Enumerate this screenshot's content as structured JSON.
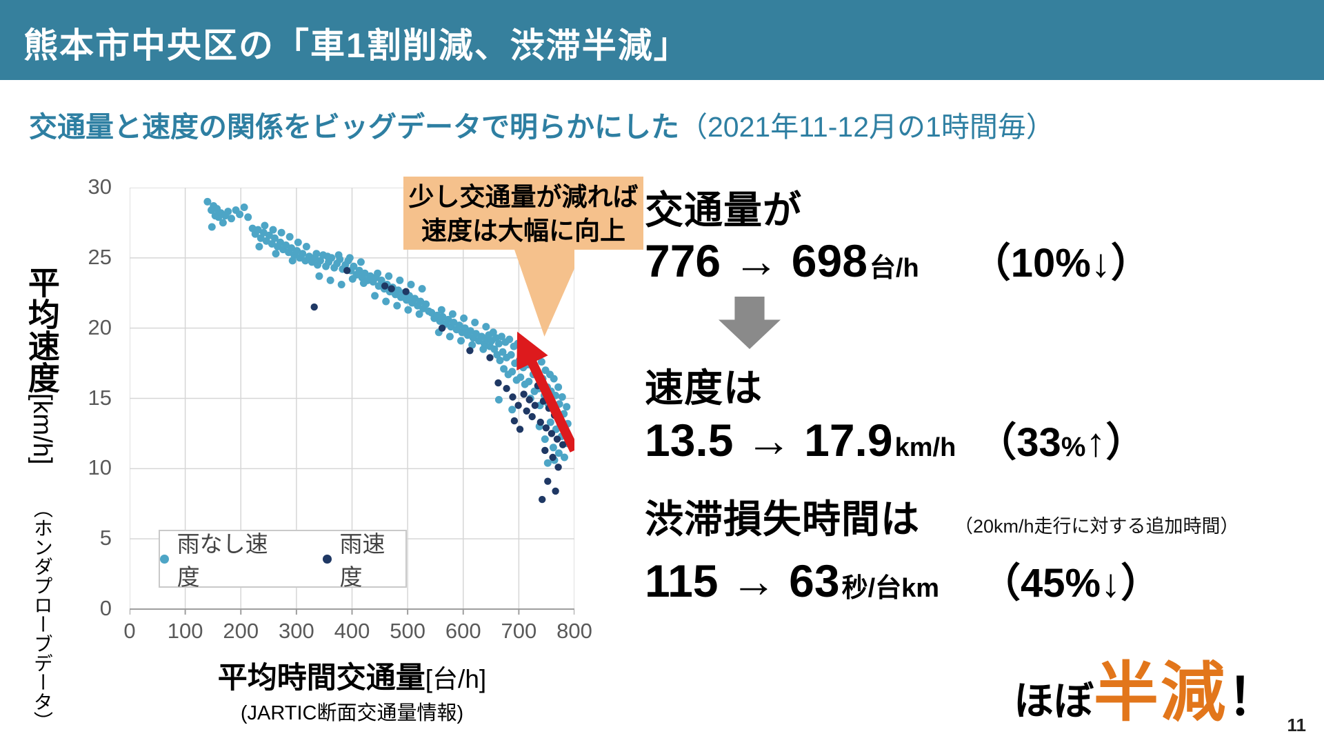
{
  "slide": {
    "title": "熊本市中央区の「車1割削減、渋滞半減」",
    "subtitle_main": "交通量と速度の関係をビッグデータで明らかにした",
    "subtitle_paren": "（2021年11-12月の1時間毎）",
    "page_number": "11"
  },
  "colors": {
    "header_bg": "#36809d",
    "subtitle_text": "#2e7fa2",
    "callout_bg": "#f5c18c",
    "red_arrow": "#dd1a1d",
    "gray_arrow": "#8a8a8a",
    "accent_orange": "#e2761b",
    "series_dry": "#4da5c6",
    "series_rain": "#1f3864",
    "grid": "#d6d6d6"
  },
  "callout": {
    "line1": "少し交通量が減れば",
    "line2": "速度は大幅に向上"
  },
  "stats": {
    "block1": {
      "label": "交通量が",
      "value": "776 → 698",
      "unit": "台/h",
      "change_pre": "（10%",
      "change_small": "",
      "change_post": "↓）"
    },
    "block2": {
      "label": "速度は",
      "value": "13.5 → 17.9",
      "unit": "km/h",
      "change_pre": "（33",
      "change_small": "%",
      "change_post": "↑）"
    },
    "block3": {
      "label": "渋滞損失時間は",
      "note": "（20km/h走行に対する追加時間）",
      "value": "115 → 63",
      "unit": "秒/台km",
      "change_pre": "（45%",
      "change_small": "",
      "change_post": "↓）"
    }
  },
  "conclusion": {
    "pre": "ほぼ",
    "highlight": "半減",
    "post": "！"
  },
  "chart_data": {
    "type": "scatter",
    "xlabel_main": "平均時間交通量",
    "xlabel_unit": "[台/h]",
    "xlabel_sub": "(JARTIC断面交通量情報)",
    "ylabel_main": "平均速度",
    "ylabel_unit": "[km/h]",
    "ylabel_sub": "（ホンダプローブデータ）",
    "xlim": [
      0,
      800
    ],
    "ylim": [
      0,
      30
    ],
    "x_ticks": [
      0,
      100,
      200,
      300,
      400,
      500,
      600,
      700,
      800
    ],
    "y_ticks": [
      0,
      5,
      10,
      15,
      20,
      25,
      30
    ],
    "grid": true,
    "legend_position": "inside-bottom-left",
    "annotation": {
      "callout_line1": "少し交通量が減れば",
      "callout_line2": "速度は大幅に向上",
      "callout_tip": [
        746,
        19.4
      ],
      "red_arrow_from": [
        800,
        11.3
      ],
      "red_arrow_to": [
        716,
        18.2
      ]
    },
    "series": [
      {
        "name": "雨なし速度",
        "color": "#4da5c6",
        "marker_radius": 5.5,
        "points": [
          [
            140,
            29.0
          ],
          [
            147,
            28.4
          ],
          [
            151,
            28.7
          ],
          [
            154,
            28.0
          ],
          [
            157,
            28.5
          ],
          [
            160,
            27.9
          ],
          [
            164,
            28.2
          ],
          [
            168,
            27.5
          ],
          [
            172,
            28.0
          ],
          [
            177,
            28.3
          ],
          [
            148,
            27.2
          ],
          [
            183,
            27.8
          ],
          [
            191,
            28.4
          ],
          [
            198,
            28.1
          ],
          [
            206,
            28.6
          ],
          [
            213,
            27.9
          ],
          [
            221,
            27.1
          ],
          [
            226,
            26.7
          ],
          [
            231,
            27.0
          ],
          [
            236,
            26.4
          ],
          [
            241,
            26.8
          ],
          [
            246,
            26.2
          ],
          [
            251,
            26.6
          ],
          [
            256,
            26.0
          ],
          [
            261,
            26.4
          ],
          [
            266,
            25.8
          ],
          [
            271,
            26.1
          ],
          [
            276,
            25.6
          ],
          [
            281,
            25.9
          ],
          [
            286,
            25.4
          ],
          [
            291,
            25.7
          ],
          [
            296,
            25.2
          ],
          [
            301,
            25.5
          ],
          [
            306,
            25.0
          ],
          [
            311,
            25.3
          ],
          [
            316,
            24.8
          ],
          [
            233,
            25.8
          ],
          [
            263,
            25.3
          ],
          [
            293,
            24.8
          ],
          [
            243,
            27.3
          ],
          [
            258,
            27.0
          ],
          [
            273,
            26.8
          ],
          [
            288,
            26.5
          ],
          [
            303,
            26.1
          ],
          [
            318,
            25.8
          ],
          [
            323,
            25.1
          ],
          [
            328,
            24.7
          ],
          [
            333,
            25.0
          ],
          [
            338,
            24.5
          ],
          [
            343,
            24.8
          ],
          [
            348,
            25.2
          ],
          [
            353,
            24.4
          ],
          [
            358,
            24.7
          ],
          [
            363,
            25.0
          ],
          [
            368,
            24.3
          ],
          [
            373,
            24.6
          ],
          [
            378,
            24.9
          ],
          [
            383,
            24.2
          ],
          [
            388,
            24.5
          ],
          [
            393,
            24.8
          ],
          [
            398,
            24.1
          ],
          [
            403,
            24.4
          ],
          [
            408,
            23.8
          ],
          [
            413,
            24.1
          ],
          [
            418,
            23.6
          ],
          [
            423,
            23.9
          ],
          [
            428,
            23.4
          ],
          [
            336,
            25.3
          ],
          [
            356,
            25.1
          ],
          [
            376,
            25.2
          ],
          [
            396,
            25.0
          ],
          [
            416,
            24.7
          ],
          [
            341,
            23.7
          ],
          [
            361,
            23.4
          ],
          [
            381,
            23.1
          ],
          [
            401,
            23.5
          ],
          [
            421,
            23.2
          ],
          [
            433,
            23.7
          ],
          [
            438,
            23.3
          ],
          [
            443,
            23.6
          ],
          [
            448,
            23.0
          ],
          [
            453,
            23.4
          ],
          [
            458,
            22.8
          ],
          [
            463,
            23.1
          ],
          [
            468,
            22.6
          ],
          [
            473,
            22.9
          ],
          [
            478,
            22.4
          ],
          [
            483,
            22.7
          ],
          [
            488,
            22.2
          ],
          [
            493,
            22.5
          ],
          [
            498,
            22.0
          ],
          [
            503,
            22.3
          ],
          [
            508,
            21.8
          ],
          [
            513,
            22.1
          ],
          [
            518,
            21.6
          ],
          [
            523,
            21.9
          ],
          [
            528,
            21.4
          ],
          [
            533,
            21.7
          ],
          [
            538,
            21.2
          ],
          [
            446,
            23.9
          ],
          [
            466,
            23.7
          ],
          [
            486,
            23.4
          ],
          [
            506,
            23.1
          ],
          [
            526,
            22.8
          ],
          [
            441,
            22.3
          ],
          [
            461,
            21.9
          ],
          [
            481,
            21.6
          ],
          [
            501,
            21.3
          ],
          [
            521,
            21.0
          ],
          [
            543,
            21.1
          ],
          [
            548,
            20.7
          ],
          [
            553,
            20.9
          ],
          [
            558,
            20.5
          ],
          [
            563,
            20.8
          ],
          [
            568,
            20.3
          ],
          [
            573,
            20.6
          ],
          [
            578,
            20.1
          ],
          [
            583,
            20.4
          ],
          [
            588,
            19.9
          ],
          [
            593,
            20.2
          ],
          [
            598,
            19.7
          ],
          [
            603,
            20.0
          ],
          [
            608,
            19.5
          ],
          [
            613,
            19.8
          ],
          [
            618,
            19.3
          ],
          [
            623,
            19.6
          ],
          [
            628,
            19.1
          ],
          [
            633,
            19.4
          ],
          [
            638,
            18.9
          ],
          [
            643,
            19.2
          ],
          [
            648,
            18.7
          ],
          [
            556,
            19.7
          ],
          [
            576,
            19.4
          ],
          [
            596,
            19.1
          ],
          [
            616,
            18.8
          ],
          [
            636,
            18.5
          ],
          [
            561,
            21.3
          ],
          [
            581,
            21.0
          ],
          [
            601,
            20.7
          ],
          [
            621,
            20.4
          ],
          [
            641,
            20.1
          ],
          [
            646,
            19.5
          ],
          [
            651,
            19.1
          ],
          [
            654,
            19.7
          ],
          [
            656,
            18.5
          ],
          [
            659,
            19.3
          ],
          [
            661,
            18.1
          ],
          [
            664,
            18.9
          ],
          [
            666,
            17.7
          ],
          [
            669,
            19.4
          ],
          [
            671,
            18.3
          ],
          [
            673,
            17.1
          ],
          [
            676,
            19.0
          ],
          [
            678,
            17.9
          ],
          [
            681,
            16.7
          ],
          [
            683,
            19.2
          ],
          [
            686,
            18.1
          ],
          [
            688,
            16.9
          ],
          [
            691,
            18.7
          ],
          [
            693,
            17.5
          ],
          [
            696,
            16.3
          ],
          [
            698,
            18.9
          ],
          [
            701,
            17.7
          ],
          [
            703,
            16.5
          ],
          [
            706,
            18.4
          ],
          [
            708,
            17.2
          ],
          [
            711,
            16.0
          ],
          [
            713,
            18.6
          ],
          [
            716,
            17.4
          ],
          [
            718,
            16.2
          ],
          [
            721,
            15.0
          ],
          [
            723,
            17.9
          ],
          [
            726,
            16.7
          ],
          [
            728,
            15.5
          ],
          [
            731,
            18.1
          ],
          [
            733,
            16.9
          ],
          [
            736,
            15.7
          ],
          [
            738,
            14.5
          ],
          [
            741,
            17.6
          ],
          [
            743,
            16.4
          ],
          [
            746,
            15.2
          ],
          [
            748,
            17.0
          ],
          [
            751,
            15.8
          ],
          [
            753,
            14.6
          ],
          [
            756,
            16.7
          ],
          [
            758,
            15.5
          ],
          [
            761,
            14.3
          ],
          [
            763,
            16.4
          ],
          [
            766,
            15.2
          ],
          [
            768,
            14.0
          ],
          [
            771,
            15.8
          ],
          [
            773,
            14.6
          ],
          [
            776,
            13.4
          ],
          [
            778,
            15.1
          ],
          [
            781,
            13.9
          ],
          [
            783,
            12.7
          ],
          [
            786,
            14.4
          ],
          [
            788,
            13.2
          ],
          [
            790,
            12.1
          ],
          [
            757,
            13.3
          ],
          [
            767,
            12.8
          ],
          [
            777,
            12.3
          ],
          [
            787,
            11.8
          ],
          [
            762,
            11.5
          ],
          [
            772,
            11.1
          ],
          [
            782,
            10.8
          ],
          [
            747,
            12.1
          ],
          [
            737,
            13.0
          ],
          [
            664,
            14.9
          ],
          [
            688,
            14.2
          ],
          [
            752,
            10.4
          ],
          [
            764,
            10.6
          ]
        ]
      },
      {
        "name": "雨速度",
        "color": "#1f3864",
        "marker_radius": 5.2,
        "points": [
          [
            332,
            21.5
          ],
          [
            391,
            24.1
          ],
          [
            459,
            23.0
          ],
          [
            471,
            22.8
          ],
          [
            497,
            22.6
          ],
          [
            562,
            20.0
          ],
          [
            612,
            18.4
          ],
          [
            648,
            17.9
          ],
          [
            663,
            16.1
          ],
          [
            678,
            15.7
          ],
          [
            689,
            15.1
          ],
          [
            699,
            14.5
          ],
          [
            704,
            17.6
          ],
          [
            709,
            15.3
          ],
          [
            714,
            14.1
          ],
          [
            719,
            14.9
          ],
          [
            724,
            13.7
          ],
          [
            729,
            14.5
          ],
          [
            734,
            15.9
          ],
          [
            739,
            13.3
          ],
          [
            744,
            14.8
          ],
          [
            749,
            12.9
          ],
          [
            754,
            14.3
          ],
          [
            759,
            12.5
          ],
          [
            764,
            13.8
          ],
          [
            769,
            12.1
          ],
          [
            774,
            13.2
          ],
          [
            779,
            11.7
          ],
          [
            784,
            12.7
          ],
          [
            747,
            11.3
          ],
          [
            761,
            10.8
          ],
          [
            771,
            10.1
          ],
          [
            752,
            9.1
          ],
          [
            766,
            8.4
          ],
          [
            742,
            7.8
          ],
          [
            702,
            12.8
          ],
          [
            692,
            13.4
          ]
        ]
      }
    ]
  }
}
